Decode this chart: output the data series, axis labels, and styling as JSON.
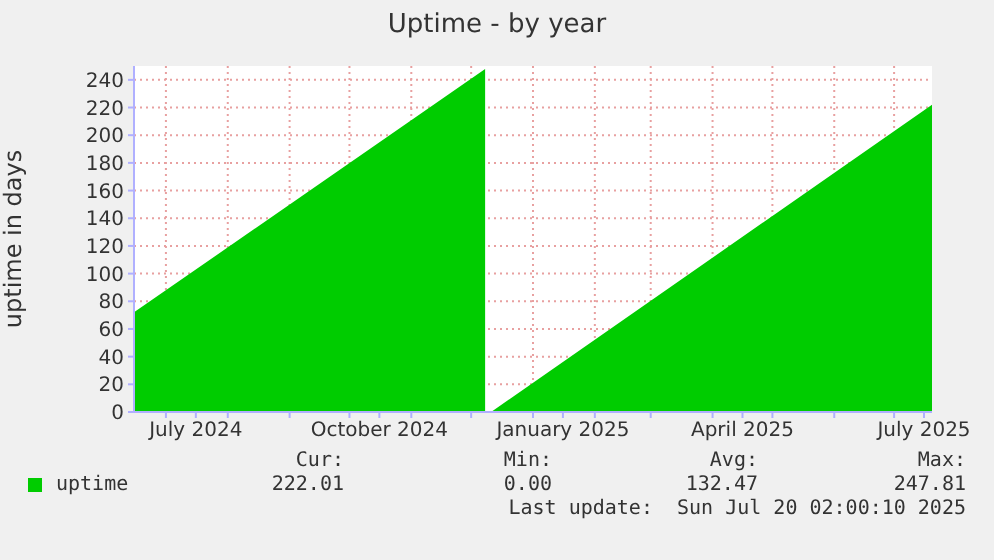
{
  "chart_data": {
    "type": "area",
    "title": "Uptime - by year",
    "ylabel": "uptime in days",
    "x": [
      "2024-06-15",
      "2024-12-08",
      "2024-12-10",
      "2024-12-11",
      "2025-07-20"
    ],
    "series": [
      {
        "name": "uptime",
        "color": "#00cc00",
        "values": [
          72,
          247.81,
          null,
          0,
          222.01
        ]
      }
    ],
    "xlim": [
      "2024-06-15",
      "2025-07-20"
    ],
    "xticks": [
      {
        "value": "2024-07-01",
        "label": null
      },
      {
        "value": "2024-07-16",
        "label": "July 2024"
      },
      {
        "value": "2024-08-01",
        "label": null
      },
      {
        "value": "2024-09-01",
        "label": null
      },
      {
        "value": "2024-10-01",
        "label": null
      },
      {
        "value": "2024-10-16",
        "label": "October 2024"
      },
      {
        "value": "2024-11-01",
        "label": null
      },
      {
        "value": "2024-12-01",
        "label": null
      },
      {
        "value": "2025-01-01",
        "label": null
      },
      {
        "value": "2025-01-16",
        "label": "January 2025"
      },
      {
        "value": "2025-02-01",
        "label": null
      },
      {
        "value": "2025-03-01",
        "label": null
      },
      {
        "value": "2025-04-01",
        "label": null
      },
      {
        "value": "2025-04-16",
        "label": "April 2025"
      },
      {
        "value": "2025-05-01",
        "label": null
      },
      {
        "value": "2025-06-01",
        "label": null
      },
      {
        "value": "2025-07-01",
        "label": null
      },
      {
        "value": "2025-07-16",
        "label": "July 2025"
      }
    ],
    "ylim": [
      0,
      250
    ],
    "yticks": [
      0,
      20,
      40,
      60,
      80,
      100,
      120,
      140,
      160,
      180,
      200,
      220,
      240
    ],
    "grid": true,
    "legend": "bottom left",
    "annotations": [
      "Cur:",
      "Min:",
      "Avg:",
      "Max:",
      "222.01",
      "0.00",
      "132.47",
      "247.81",
      "Last update:  Sun Jul 20 02:00:10 2025"
    ]
  }
}
